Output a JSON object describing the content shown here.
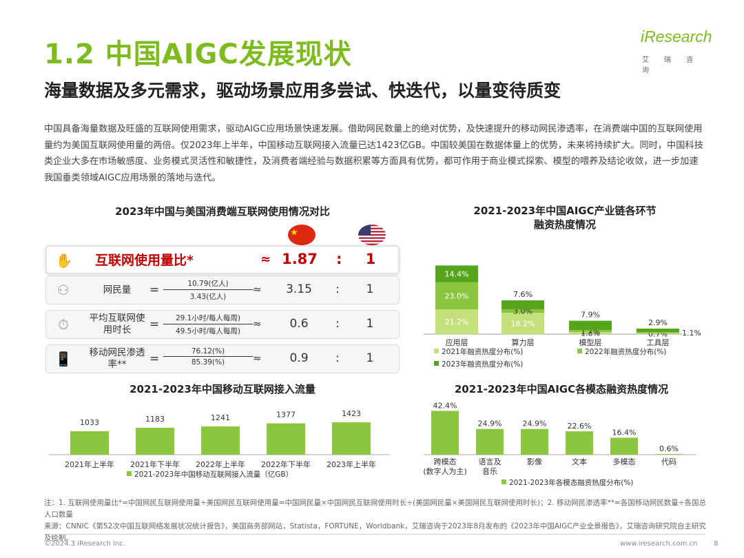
{
  "header": {
    "title": "1.2 中国AIGC发展现状",
    "subtitle": "海量数据及多元需求，驱动场景应用多尝试、快迭代，以量变待质变",
    "logo_text": "iResearch",
    "logo_sub": "艾瑞咨询"
  },
  "intro": "中国具备海量数据及旺盛的互联网使用需求，驱动AIGC应用场景快速发展。借助网民数量上的绝对优势，及快速提升的移动网民渗透率，在消费端中国的互联网使用量约为美国互联网使用量的两倍。仅2023年上半年，中国移动互联网接入流量已达1423亿GB。中国较美国在数据体量上的优势，未来将持续扩大。同时，中国科技类企业大多在市场敏感度、业务模式灵活性和敏捷性，及消费者端经验与数据积累等方面具有优势，都可作用于商业模式探索、模型的喂养及结论收敛，进一步加速我国垂类领域AIGC应用场景的落地与迭代。",
  "comparison": {
    "title": "2023年中国与美国消费端互联网使用情况对比",
    "highlight": {
      "label": "互联网使用量比*",
      "approx": "≈",
      "value": "1.87",
      "colon": ":",
      "one": "1"
    },
    "rows": [
      {
        "label": "网民量",
        "eq": "=",
        "numerator": "10.79(亿人)",
        "denominator": "3.43(亿人)",
        "approx": "≈",
        "value": "3.15",
        "colon": ":",
        "one": "1"
      },
      {
        "label": "平均互联网使用时长",
        "eq": "=",
        "numerator": "29.1小时/每人每周)",
        "denominator": "49.5小时/每人每周)",
        "approx": "≈",
        "value": "0.6",
        "colon": ":",
        "one": "1"
      },
      {
        "label": "移动网民渗透率**",
        "eq": "=",
        "numerator": "76.12(%)",
        "denominator": "85.39(%)",
        "approx": "≈",
        "value": "0.9",
        "colon": ":",
        "one": "1"
      }
    ]
  },
  "colors": {
    "accent": "#7dbb1f",
    "dark_green": "#55a51c",
    "mid_green": "#8cc63f",
    "light_green": "#c4e07a",
    "highlight_red": "#c00000"
  },
  "chart_data": [
    {
      "id": "chain",
      "type": "bar",
      "title": "2021-2023年中国AIGC产业链各环节融资热度情况",
      "categories": [
        "应用层",
        "算力层",
        "模型层",
        "工具层"
      ],
      "series": [
        {
          "name": "2021年融资热度分布(%)",
          "values": [
            21.2,
            18.2,
            1.8,
            0.7
          ]
        },
        {
          "name": "2022年融资热度分布(%)",
          "values": [
            23.0,
            3.0,
            1.7,
            1.1
          ]
        },
        {
          "name": "2023年融资热度分布(%)",
          "values": [
            14.4,
            7.6,
            7.9,
            2.9
          ]
        }
      ],
      "stacked": true
    },
    {
      "id": "traffic",
      "type": "bar",
      "title": "2021-2023年中国移动互联网接入流量",
      "categories": [
        "2021年上半年",
        "2021年下半年",
        "2022年上半年",
        "2022年下半年",
        "2023年上半年"
      ],
      "values": [
        1033,
        1183,
        1241,
        1377,
        1423
      ],
      "legend": "2021-2023年中国移动互联网接入流量（亿GB）"
    },
    {
      "id": "modal",
      "type": "bar",
      "title": "2021-2023年中国AIGC各模态融资热度情况",
      "categories": [
        "跨模态（数字人为主）",
        "语言及音乐",
        "影像",
        "文本",
        "多模态",
        "代码"
      ],
      "values": [
        42.4,
        24.9,
        24.9,
        22.6,
        16.4,
        0.6
      ],
      "legend": "2021-2023年各模态融资热度分布(%)"
    }
  ],
  "chart_labels": {
    "chain_title_line1": "2021-2023年中国AIGC产业链各环节",
    "chain_title_line2": "融资热度情况",
    "modal_cat1_line1": "跨模态",
    "modal_cat1_line2": "(数字人为主)",
    "modal_cat2_line1": "语言及",
    "modal_cat2_line2": "音乐"
  },
  "footer": {
    "note1": "注：1. 互联网使用量比*=中国网民互联网使用量÷美国网民互联网使用量=中国网民量×中国网民互联网使用时长÷(美国网民量×美国网民互联网使用时长)；2. 移动网民渗透率**=各国移动网民数量÷各国总人口数量",
    "source": "来源：CNNIC《第52次中国互联网络发展状况统计报告》，美国商务部网站，Statista，FORTUNE，Worldbank，艾瑞咨询于2023年8月发布的《2023年中国AIGC产业全景报告》，艾瑞咨询研究院自主研究及绘制。",
    "copyright": "©2024.3 iResearch Inc.",
    "site": "www.iresearch.com.cn",
    "page": "8"
  }
}
